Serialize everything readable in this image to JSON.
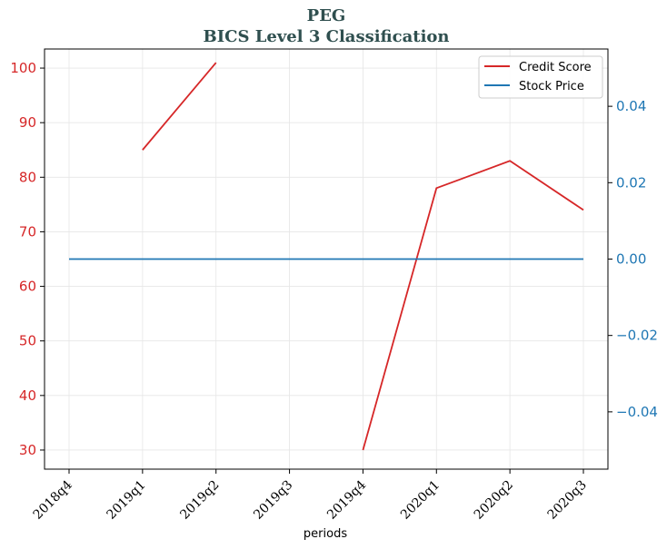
{
  "chart_data": {
    "type": "line",
    "title": "PEG",
    "subtitle": "BICS Level 3 Classification",
    "xlabel": "periods",
    "categories": [
      "2018q4",
      "2019q1",
      "2019q2",
      "2019q3",
      "2019q4",
      "2020q1",
      "2020q2",
      "2020q3"
    ],
    "left_axis": {
      "ylim": [
        26.5,
        103.5
      ],
      "ticks": [
        30,
        40,
        50,
        60,
        70,
        80,
        90,
        100
      ],
      "color": "#d62728"
    },
    "right_axis": {
      "ylim": [
        -0.055,
        0.055
      ],
      "ticks": [
        -0.04,
        -0.02,
        0.0,
        0.02,
        0.04
      ],
      "tick_labels": [
        "−0.04",
        "−0.02",
        "0.00",
        "0.02",
        "0.04"
      ],
      "color": "#1f77b4"
    },
    "series": [
      {
        "name": "Credit Score",
        "axis": "left",
        "color": "#d62728",
        "values": [
          null,
          85,
          101,
          null,
          30,
          78,
          83,
          74
        ]
      },
      {
        "name": "Stock Price",
        "axis": "right",
        "color": "#1f77b4",
        "values": [
          0,
          0,
          0,
          0,
          0,
          0,
          0,
          0
        ]
      }
    ],
    "grid": true,
    "legend_position": "top-right"
  }
}
